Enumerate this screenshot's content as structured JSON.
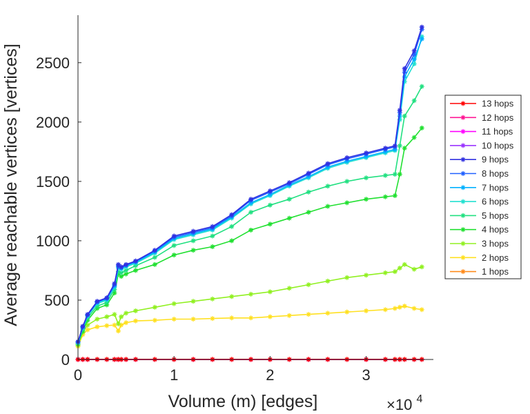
{
  "chart_data": {
    "type": "line",
    "title": "",
    "xlabel": "Volume (m) [edges]",
    "ylabel": "Average reachable vertices [vertices]",
    "x_multiplier_label": "×10",
    "x_multiplier_exponent": "4",
    "xlim": [
      0,
      37000
    ],
    "ylim": [
      0,
      2900
    ],
    "xticks": [
      0,
      10000,
      20000,
      30000
    ],
    "xtick_labels": [
      "0",
      "1",
      "2",
      "3"
    ],
    "yticks": [
      0,
      500,
      1000,
      1500,
      2000,
      2500
    ],
    "ytick_labels": [
      "0",
      "500",
      "1000",
      "1500",
      "2000",
      "2500"
    ],
    "grid": false,
    "legend_position": "right",
    "x": [
      0,
      500,
      1000,
      2000,
      3000,
      3800,
      4200,
      4500,
      5000,
      6000,
      8000,
      10000,
      12000,
      14000,
      16000,
      18000,
      20000,
      22000,
      24000,
      26000,
      28000,
      30000,
      32000,
      33000,
      33500,
      34000,
      35000,
      35800
    ],
    "series": [
      {
        "name": "13 hops",
        "color": "#ff0000",
        "values": [
          0,
          0,
          0,
          0,
          0,
          0,
          0,
          0,
          0,
          0,
          0,
          0,
          0,
          0,
          0,
          0,
          0,
          0,
          0,
          0,
          0,
          0,
          0,
          0,
          0,
          0,
          0,
          0
        ]
      },
      {
        "name": "12 hops",
        "color": "#ff1493",
        "values": [
          0,
          0,
          0,
          0,
          0,
          0,
          0,
          0,
          0,
          0,
          0,
          0,
          0,
          0,
          0,
          0,
          0,
          0,
          0,
          0,
          0,
          0,
          0,
          0,
          0,
          0,
          0,
          0
        ]
      },
      {
        "name": "11 hops",
        "color": "#ff00ff",
        "values": [
          0,
          0,
          0,
          0,
          0,
          0,
          0,
          0,
          0,
          0,
          0,
          0,
          0,
          0,
          0,
          0,
          0,
          0,
          0,
          0,
          0,
          0,
          0,
          0,
          0,
          0,
          0,
          0
        ]
      },
      {
        "name": "10 hops",
        "color": "#9932ff",
        "values": [
          0,
          0,
          0,
          0,
          0,
          0,
          0,
          0,
          0,
          0,
          0,
          0,
          0,
          0,
          0,
          0,
          0,
          0,
          0,
          0,
          0,
          0,
          0,
          0,
          0,
          0,
          0,
          0
        ]
      },
      {
        "name": "9 hops",
        "color": "#3030e0",
        "values": [
          150,
          280,
          380,
          490,
          520,
          640,
          800,
          780,
          800,
          830,
          920,
          1040,
          1080,
          1120,
          1220,
          1350,
          1420,
          1490,
          1570,
          1650,
          1700,
          1740,
          1780,
          1800,
          2100,
          2450,
          2600,
          2800
        ]
      },
      {
        "name": "8 hops",
        "color": "#2060ff",
        "values": [
          150,
          275,
          375,
          485,
          515,
          630,
          790,
          775,
          795,
          825,
          915,
          1030,
          1070,
          1110,
          1210,
          1340,
          1410,
          1480,
          1560,
          1640,
          1690,
          1730,
          1770,
          1790,
          2080,
          2420,
          2570,
          2780
        ]
      },
      {
        "name": "7 hops",
        "color": "#00b0ff",
        "values": [
          145,
          270,
          370,
          480,
          510,
          620,
          780,
          770,
          790,
          820,
          905,
          1020,
          1060,
          1100,
          1200,
          1320,
          1390,
          1470,
          1540,
          1620,
          1670,
          1710,
          1750,
          1770,
          2050,
          2380,
          2530,
          2700
        ]
      },
      {
        "name": "6 hops",
        "color": "#20e0d0",
        "values": [
          140,
          265,
          365,
          470,
          500,
          610,
          770,
          760,
          780,
          810,
          895,
          1010,
          1050,
          1090,
          1190,
          1310,
          1380,
          1460,
          1530,
          1610,
          1660,
          1700,
          1740,
          1760,
          2020,
          2340,
          2490,
          2720
        ]
      },
      {
        "name": "5 hops",
        "color": "#20e080",
        "values": [
          140,
          255,
          350,
          450,
          480,
          590,
          740,
          730,
          750,
          790,
          860,
          960,
          1000,
          1040,
          1120,
          1240,
          1300,
          1350,
          1410,
          1460,
          1500,
          1530,
          1550,
          1560,
          1800,
          2050,
          2180,
          2300
        ]
      },
      {
        "name": "4 hops",
        "color": "#20e030",
        "values": [
          130,
          240,
          330,
          430,
          460,
          560,
          720,
          700,
          720,
          750,
          800,
          880,
          920,
          950,
          1000,
          1090,
          1140,
          1190,
          1240,
          1290,
          1320,
          1350,
          1370,
          1380,
          1560,
          1780,
          1870,
          1950
        ]
      },
      {
        "name": "3 hops",
        "color": "#90f020",
        "values": [
          120,
          230,
          290,
          340,
          360,
          380,
          300,
          360,
          390,
          410,
          440,
          470,
          490,
          510,
          530,
          550,
          570,
          600,
          630,
          660,
          690,
          710,
          730,
          740,
          770,
          800,
          760,
          780
        ]
      },
      {
        "name": "2 hops",
        "color": "#ffe020",
        "values": [
          110,
          210,
          250,
          275,
          285,
          290,
          240,
          290,
          310,
          325,
          330,
          340,
          340,
          345,
          350,
          350,
          360,
          370,
          380,
          390,
          400,
          410,
          420,
          430,
          440,
          450,
          430,
          420
        ]
      },
      {
        "name": "1 hops",
        "color": "#ff8a1a",
        "values": [
          2,
          2,
          2,
          2,
          2,
          2,
          2,
          2,
          2,
          2,
          2,
          2,
          2,
          2,
          2,
          2,
          2,
          2,
          2,
          2,
          2,
          2,
          2,
          2,
          2,
          2,
          2,
          2
        ]
      }
    ]
  }
}
